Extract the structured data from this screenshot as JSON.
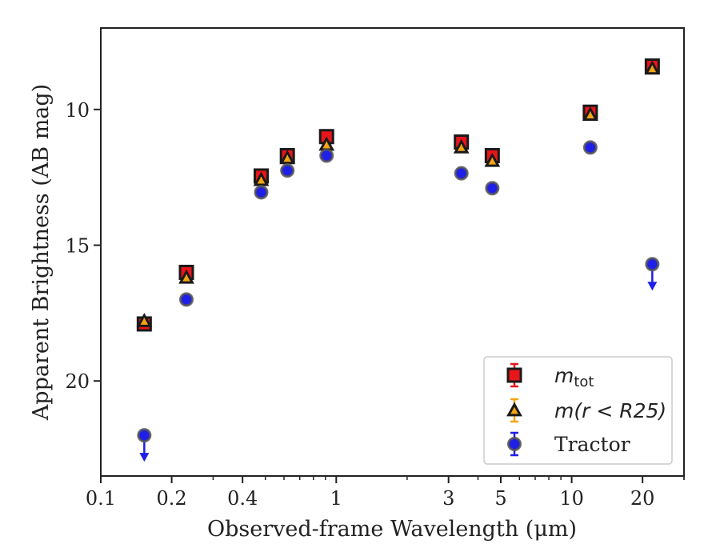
{
  "chart_data": {
    "type": "scatter",
    "xlabel": "Observed-frame Wavelength (μm)",
    "ylabel": "Apparent Brightness (AB mag)",
    "x_scale": "log",
    "xlim": [
      0.1,
      30
    ],
    "ylim": [
      23.5,
      7.0
    ],
    "y_inverted": true,
    "x_ticks": [
      {
        "value": 0.1,
        "label": "0.1"
      },
      {
        "value": 0.2,
        "label": "0.2"
      },
      {
        "value": 0.4,
        "label": "0.4"
      },
      {
        "value": 1,
        "label": "1"
      },
      {
        "value": 3,
        "label": "3"
      },
      {
        "value": 5,
        "label": "5"
      },
      {
        "value": 10,
        "label": "10"
      },
      {
        "value": 20,
        "label": "20"
      }
    ],
    "y_ticks": [
      {
        "value": 10,
        "label": "10"
      },
      {
        "value": 15,
        "label": "15"
      },
      {
        "value": 20,
        "label": "20"
      }
    ],
    "grid": false,
    "legend_position": "bottom-right",
    "series": [
      {
        "name": "m_tot",
        "legend_main": "m",
        "legend_sub": "tot",
        "marker": "square",
        "color": "#e8151b",
        "points": [
          {
            "x": 0.153,
            "y": 17.9
          },
          {
            "x": 0.231,
            "y": 16.0
          },
          {
            "x": 0.48,
            "y": 12.45
          },
          {
            "x": 0.62,
            "y": 11.7
          },
          {
            "x": 0.91,
            "y": 11.0
          },
          {
            "x": 3.4,
            "y": 11.2
          },
          {
            "x": 4.6,
            "y": 11.7
          },
          {
            "x": 12.0,
            "y": 10.1
          },
          {
            "x": 22.0,
            "y": 8.4
          }
        ]
      },
      {
        "name": "m(r < R25)",
        "marker": "triangle",
        "color": "#f5a511",
        "points": [
          {
            "x": 0.153,
            "y": 17.8
          },
          {
            "x": 0.231,
            "y": 16.2
          },
          {
            "x": 0.48,
            "y": 12.6
          },
          {
            "x": 0.62,
            "y": 11.8
          },
          {
            "x": 0.91,
            "y": 11.3
          },
          {
            "x": 3.4,
            "y": 11.4
          },
          {
            "x": 4.6,
            "y": 11.9
          },
          {
            "x": 12.0,
            "y": 10.2
          },
          {
            "x": 22.0,
            "y": 8.5
          }
        ]
      },
      {
        "name": "Tractor",
        "marker": "circle",
        "color": "#1f1fe8",
        "points": [
          {
            "x": 0.153,
            "y": 22.0,
            "upper_limit": true
          },
          {
            "x": 0.231,
            "y": 17.0
          },
          {
            "x": 0.48,
            "y": 13.05
          },
          {
            "x": 0.62,
            "y": 12.25
          },
          {
            "x": 0.91,
            "y": 11.7
          },
          {
            "x": 3.4,
            "y": 12.35
          },
          {
            "x": 4.6,
            "y": 12.9
          },
          {
            "x": 12.0,
            "y": 11.4
          },
          {
            "x": 22.0,
            "y": 15.7,
            "upper_limit": true
          }
        ]
      }
    ]
  }
}
